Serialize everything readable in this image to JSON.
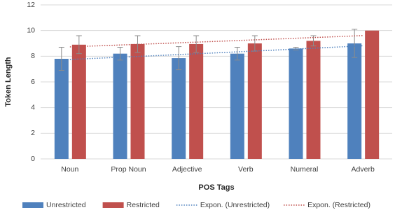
{
  "chart_data": {
    "type": "bar",
    "x_label": "POS Tags",
    "y_label": "Token Length",
    "categories": [
      "Noun",
      "Prop Noun",
      "Adjective",
      "Verb",
      "Numeral",
      "Adverb"
    ],
    "series": [
      {
        "name": "Unrestricted",
        "color": "#4f81bd",
        "values": [
          7.8,
          8.2,
          7.85,
          8.2,
          8.6,
          9.0
        ],
        "errors": [
          0.9,
          0.5,
          0.9,
          0.5,
          0.1,
          1.1
        ]
      },
      {
        "name": "Restricted",
        "color": "#c0504d",
        "values": [
          8.9,
          8.95,
          8.95,
          9.0,
          9.2,
          10.0
        ],
        "errors": [
          0.7,
          0.65,
          0.65,
          0.6,
          0.4,
          0
        ]
      }
    ],
    "trendlines": [
      {
        "name": "Expon. (Unrestricted)",
        "series": 0,
        "color": "#4f81bd"
      },
      {
        "name": "Expon. (Restricted)",
        "series": 1,
        "color": "#c0504d"
      }
    ],
    "ylim": [
      0,
      12
    ],
    "yticks": [
      0,
      2,
      4,
      6,
      8,
      10,
      12
    ],
    "grid": true,
    "legend": "bottom"
  }
}
